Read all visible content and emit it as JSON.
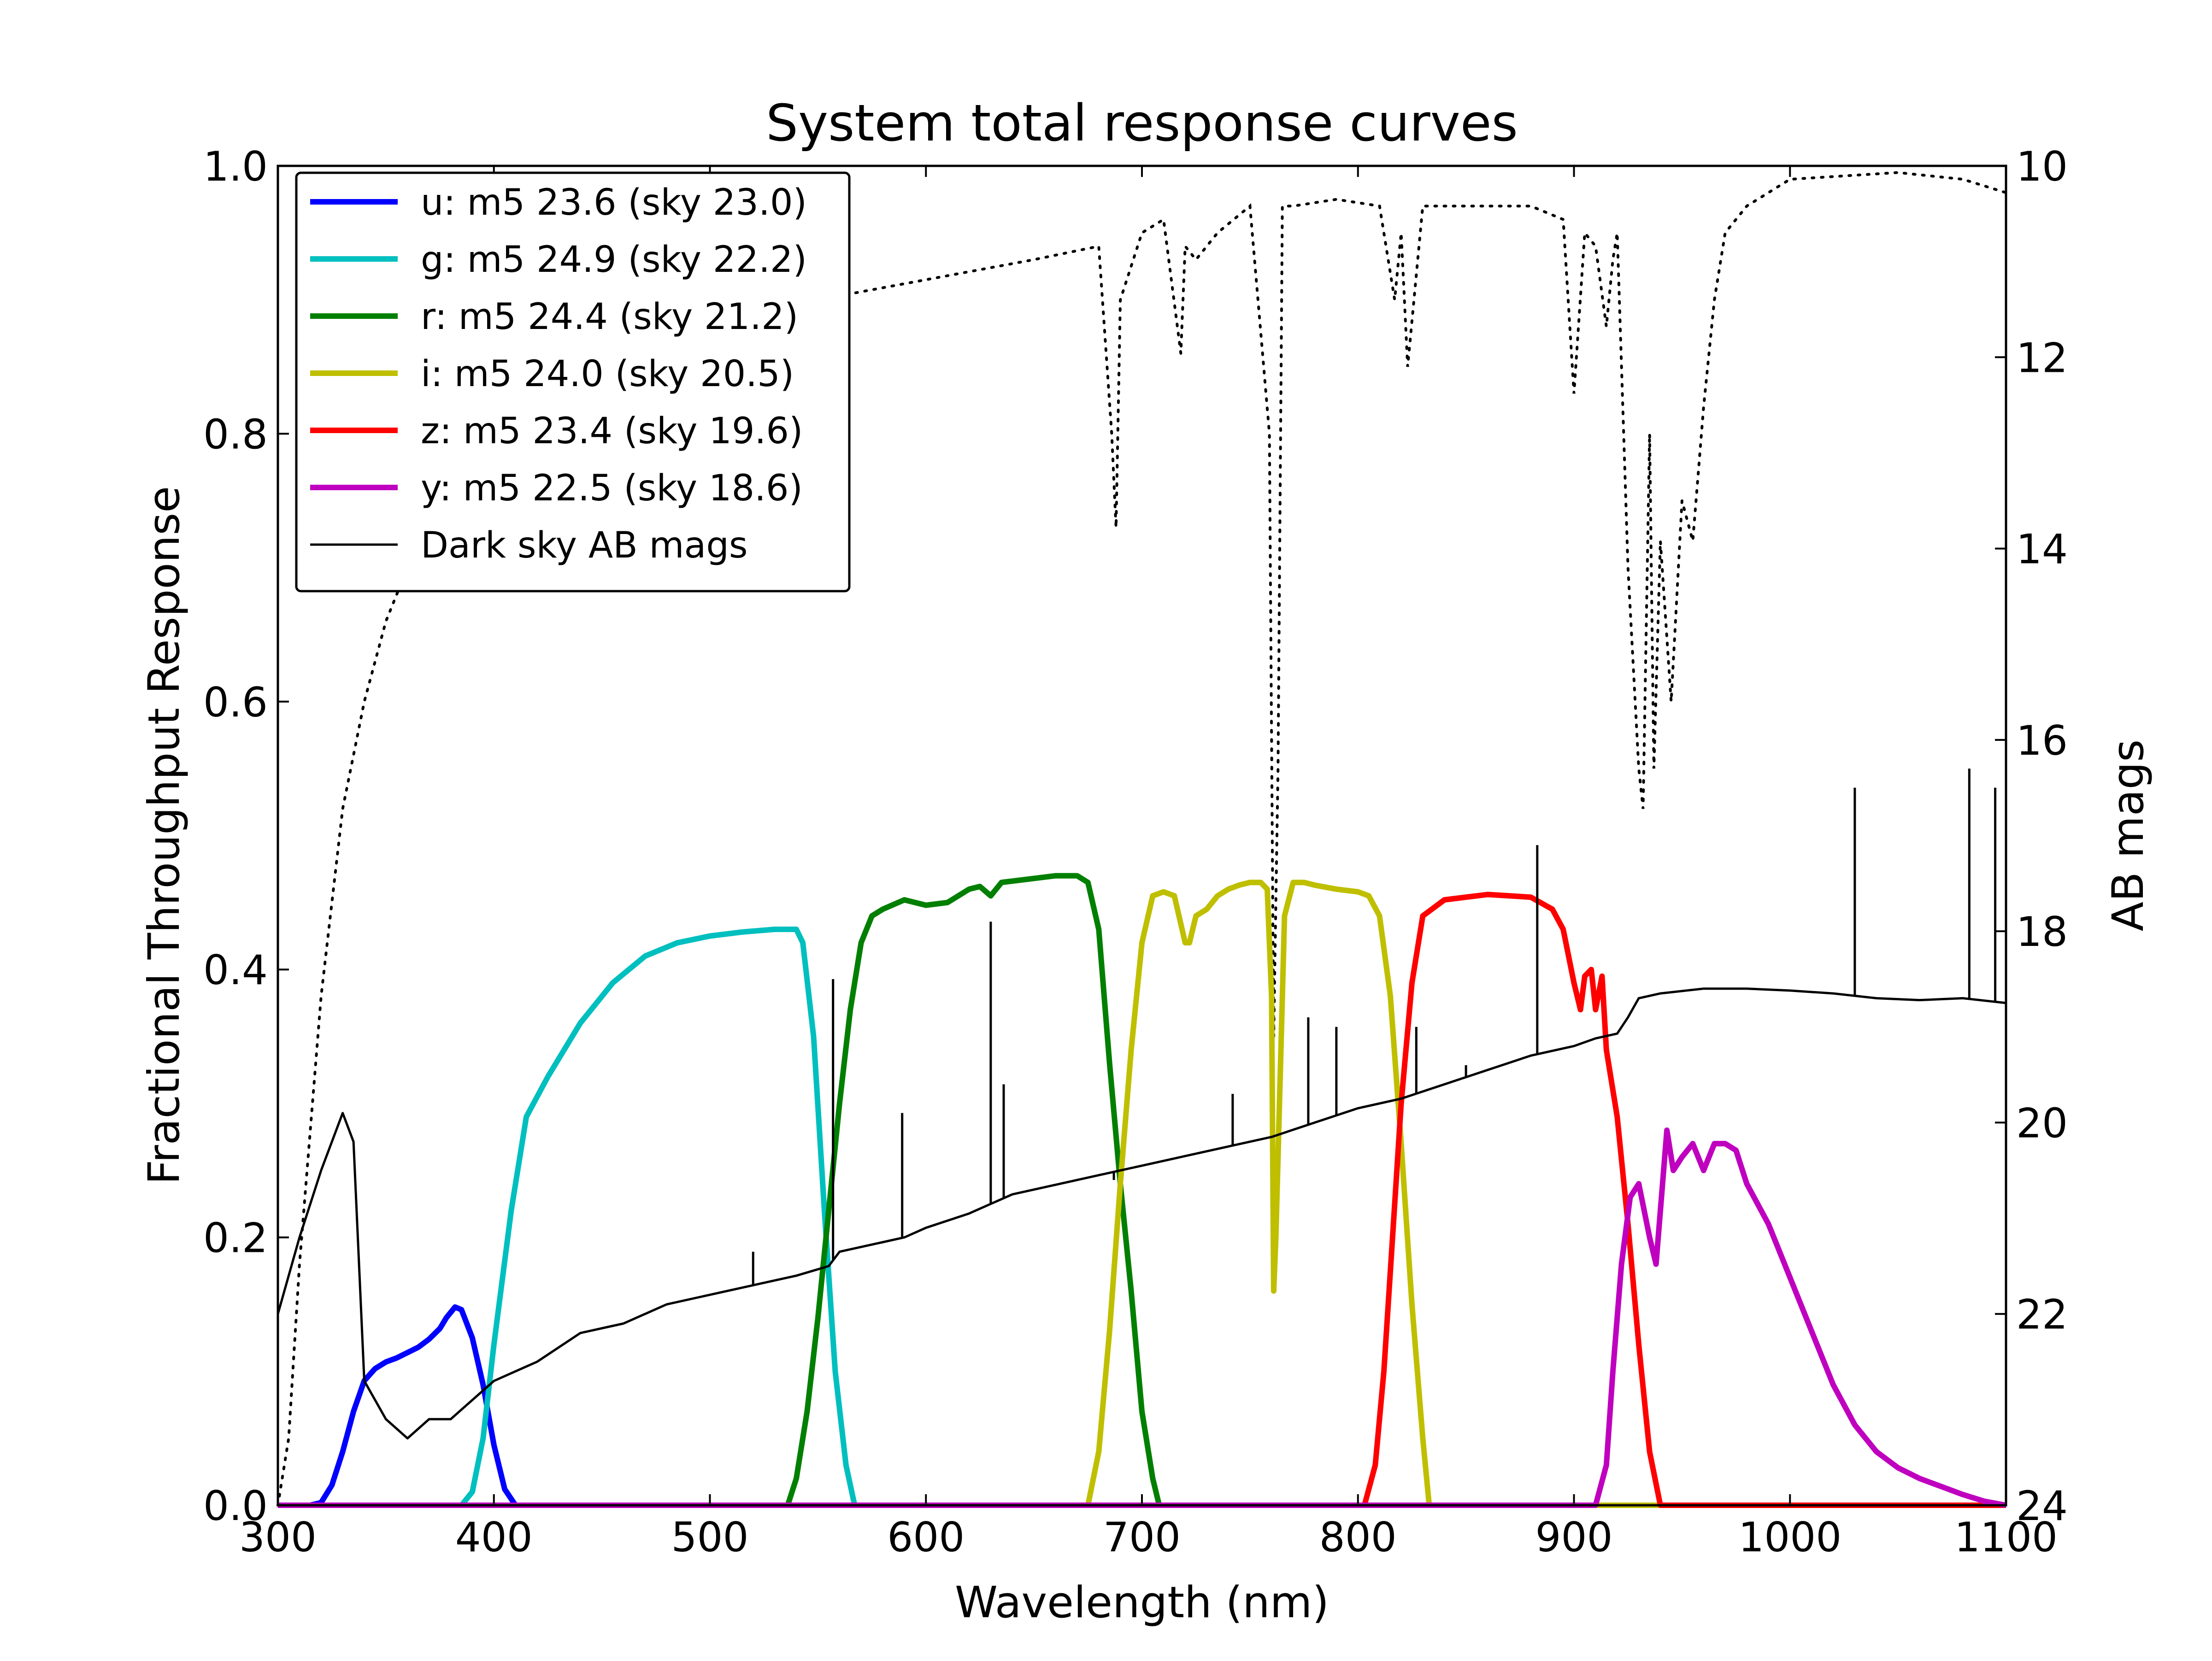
{
  "chart_data": {
    "type": "line",
    "title": "System total response curves",
    "xlabel": "Wavelength (nm)",
    "ylabel": "Fractional Throughput Response",
    "ylabel_right": "AB mags",
    "xlim": [
      300,
      1100
    ],
    "ylim": [
      0.0,
      1.0
    ],
    "ylim_right": [
      24,
      10
    ],
    "xticks": [
      "300",
      "400",
      "500",
      "600",
      "700",
      "800",
      "900",
      "1000",
      "1100"
    ],
    "yticks": [
      "0.0",
      "0.2",
      "0.4",
      "0.6",
      "0.8",
      "1.0"
    ],
    "yticks_right": [
      "10",
      "12",
      "14",
      "16",
      "18",
      "20",
      "22",
      "24"
    ],
    "grid": false,
    "legend_position": "top-left",
    "series": [
      {
        "name": "u: m5 23.6 (sky 23.0)",
        "color": "#0000ff",
        "axis": "left",
        "x": [
          300,
          315,
          320,
          325,
          330,
          335,
          340,
          345,
          350,
          355,
          360,
          365,
          370,
          375,
          378,
          382,
          385,
          390,
          395,
          400,
          405,
          410,
          1100
        ],
        "y": [
          0,
          0,
          0.002,
          0.015,
          0.04,
          0.07,
          0.093,
          0.102,
          0.107,
          0.11,
          0.114,
          0.118,
          0.124,
          0.132,
          0.14,
          0.148,
          0.146,
          0.125,
          0.09,
          0.045,
          0.012,
          0.0,
          0
        ]
      },
      {
        "name": "g: m5 24.9 (sky 22.2)",
        "color": "#00bfbf",
        "axis": "left",
        "x": [
          300,
          385,
          390,
          395,
          400,
          408,
          415,
          425,
          440,
          455,
          470,
          485,
          500,
          515,
          530,
          540,
          543,
          548,
          553,
          558,
          563,
          567,
          1100
        ],
        "y": [
          0,
          0,
          0.01,
          0.05,
          0.12,
          0.22,
          0.29,
          0.32,
          0.36,
          0.39,
          0.41,
          0.42,
          0.425,
          0.428,
          0.43,
          0.43,
          0.42,
          0.35,
          0.22,
          0.1,
          0.03,
          0.0,
          0
        ]
      },
      {
        "name": "r: m5 24.4 (sky 21.2)",
        "color": "#007f00",
        "axis": "left",
        "x": [
          300,
          536,
          540,
          545,
          550,
          555,
          560,
          565,
          570,
          575,
          580,
          590,
          600,
          610,
          620,
          625,
          630,
          635,
          645,
          660,
          670,
          675,
          680,
          685,
          690,
          695,
          700,
          705,
          708,
          1100
        ],
        "y": [
          0,
          0,
          0.02,
          0.07,
          0.14,
          0.22,
          0.3,
          0.37,
          0.42,
          0.44,
          0.445,
          0.452,
          0.448,
          0.45,
          0.46,
          0.462,
          0.455,
          0.465,
          0.467,
          0.47,
          0.47,
          0.465,
          0.43,
          0.33,
          0.24,
          0.16,
          0.07,
          0.02,
          0.0,
          0
        ]
      },
      {
        "name": "i: m5 24.0 (sky 20.5)",
        "color": "#bfbf00",
        "axis": "left",
        "x": [
          300,
          675,
          680,
          685,
          690,
          695,
          700,
          705,
          710,
          715,
          720,
          722,
          725,
          730,
          735,
          740,
          745,
          750,
          755,
          758,
          760,
          761,
          762,
          764,
          766,
          770,
          775,
          780,
          790,
          800,
          805,
          810,
          815,
          820,
          825,
          830,
          833,
          1100
        ],
        "y": [
          0,
          0,
          0.04,
          0.13,
          0.24,
          0.34,
          0.42,
          0.455,
          0.458,
          0.455,
          0.42,
          0.42,
          0.44,
          0.445,
          0.455,
          0.46,
          0.463,
          0.465,
          0.465,
          0.46,
          0.38,
          0.16,
          0.2,
          0.32,
          0.44,
          0.465,
          0.465,
          0.463,
          0.46,
          0.458,
          0.455,
          0.44,
          0.38,
          0.27,
          0.15,
          0.05,
          0.0,
          0
        ]
      },
      {
        "name": "z: m5 23.4 (sky 19.6)",
        "color": "#ff0000",
        "axis": "left",
        "x": [
          300,
          803,
          808,
          812,
          816,
          820,
          825,
          830,
          840,
          860,
          880,
          890,
          895,
          900,
          903,
          905,
          908,
          910,
          913,
          915,
          920,
          925,
          930,
          935,
          940,
          1100
        ],
        "y": [
          0,
          0,
          0.03,
          0.1,
          0.2,
          0.3,
          0.39,
          0.44,
          0.452,
          0.456,
          0.454,
          0.445,
          0.43,
          0.39,
          0.37,
          0.395,
          0.4,
          0.37,
          0.395,
          0.34,
          0.29,
          0.21,
          0.12,
          0.04,
          0.0,
          0
        ]
      },
      {
        "name": "y: m5 22.5 (sky 18.6)",
        "color": "#bf00bf",
        "axis": "left",
        "x": [
          300,
          910,
          915,
          918,
          922,
          926,
          930,
          935,
          938,
          940,
          943,
          946,
          950,
          955,
          960,
          965,
          970,
          975,
          980,
          990,
          1000,
          1010,
          1020,
          1030,
          1040,
          1050,
          1060,
          1070,
          1080,
          1090,
          1100
        ],
        "y": [
          0,
          0,
          0.03,
          0.1,
          0.18,
          0.23,
          0.24,
          0.2,
          0.18,
          0.22,
          0.28,
          0.25,
          0.26,
          0.27,
          0.25,
          0.27,
          0.27,
          0.265,
          0.24,
          0.21,
          0.17,
          0.13,
          0.09,
          0.06,
          0.04,
          0.028,
          0.02,
          0.014,
          0.008,
          0.003,
          0
        ]
      },
      {
        "name": "Dark sky AB mags",
        "color": "#000000",
        "axis": "right",
        "x": [
          300,
          310,
          320,
          330,
          335,
          340,
          350,
          360,
          370,
          380,
          390,
          400,
          420,
          440,
          460,
          480,
          500,
          520,
          540,
          555,
          560,
          580,
          590,
          600,
          620,
          630,
          640,
          660,
          680,
          700,
          720,
          740,
          760,
          780,
          800,
          820,
          840,
          860,
          880,
          900,
          910,
          920,
          925,
          930,
          940,
          960,
          980,
          1000,
          1020,
          1040,
          1060,
          1080,
          1100
        ],
        "y": [
          22.0,
          21.2,
          20.5,
          19.9,
          20.2,
          22.7,
          23.1,
          23.3,
          23.1,
          23.1,
          22.9,
          22.7,
          22.5,
          22.2,
          22.1,
          21.9,
          21.8,
          21.7,
          21.6,
          21.5,
          21.35,
          21.25,
          21.2,
          21.1,
          20.95,
          20.85,
          20.75,
          20.65,
          20.55,
          20.45,
          20.35,
          20.25,
          20.15,
          20.0,
          19.85,
          19.75,
          19.6,
          19.45,
          19.3,
          19.2,
          19.12,
          19.07,
          18.9,
          18.7,
          18.65,
          18.6,
          18.6,
          18.62,
          18.65,
          18.7,
          18.72,
          18.7,
          18.75
        ]
      }
    ],
    "dark_sky_lines": [
      {
        "x": 520,
        "mag": 21.35
      },
      {
        "x": 557,
        "mag": 18.5
      },
      {
        "x": 589,
        "mag": 19.9
      },
      {
        "x": 630,
        "mag": 17.9
      },
      {
        "x": 636,
        "mag": 19.6
      },
      {
        "x": 687,
        "mag": 20.6
      },
      {
        "x": 742,
        "mag": 19.7
      },
      {
        "x": 777,
        "mag": 18.9
      },
      {
        "x": 790,
        "mag": 19.0
      },
      {
        "x": 827,
        "mag": 19.0
      },
      {
        "x": 850,
        "mag": 19.4
      },
      {
        "x": 883,
        "mag": 17.1
      },
      {
        "x": 1030,
        "mag": 16.5
      },
      {
        "x": 1083,
        "mag": 16.3
      },
      {
        "x": 1095,
        "mag": 16.5
      }
    ],
    "atmosphere": {
      "color": "#000000",
      "style": "dotted",
      "axis": "left",
      "x": [
        300,
        305,
        310,
        320,
        330,
        340,
        350,
        360,
        380,
        400,
        450,
        500,
        550,
        600,
        650,
        680,
        686,
        688,
        690,
        700,
        710,
        718,
        720,
        725,
        735,
        750,
        759,
        761,
        763,
        765,
        770,
        790,
        810,
        817,
        820,
        823,
        830,
        850,
        880,
        895,
        900,
        905,
        910,
        915,
        918,
        920,
        925,
        930,
        932,
        935,
        937,
        940,
        945,
        950,
        955,
        960,
        965,
        970,
        980,
        1000,
        1050,
        1080,
        1100
      ],
      "y": [
        0.0,
        0.05,
        0.18,
        0.38,
        0.52,
        0.6,
        0.66,
        0.7,
        0.76,
        0.8,
        0.85,
        0.88,
        0.9,
        0.915,
        0.93,
        0.94,
        0.8,
        0.73,
        0.9,
        0.95,
        0.96,
        0.86,
        0.94,
        0.93,
        0.95,
        0.97,
        0.8,
        0.35,
        0.55,
        0.97,
        0.97,
        0.975,
        0.97,
        0.9,
        0.95,
        0.85,
        0.97,
        0.97,
        0.97,
        0.96,
        0.83,
        0.95,
        0.94,
        0.88,
        0.93,
        0.95,
        0.7,
        0.55,
        0.52,
        0.8,
        0.55,
        0.72,
        0.6,
        0.75,
        0.72,
        0.82,
        0.9,
        0.95,
        0.97,
        0.99,
        0.995,
        0.99,
        0.98
      ]
    }
  }
}
